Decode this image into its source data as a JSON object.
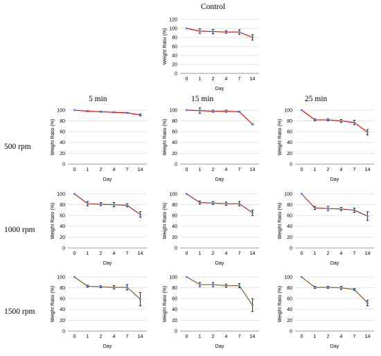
{
  "figure": {
    "column_labels": [
      "5 min",
      "15 min",
      "25 min"
    ],
    "row_labels": [
      "500 rpm",
      "1000 rpm",
      "1500 rpm"
    ],
    "control_label": "Control"
  },
  "colors": {
    "line_control": "#ff0000",
    "line_500": "#ff0000",
    "line_1000": "#a0302a",
    "line_1500": "#8b5a2b",
    "marker": "#4a86e8",
    "error": "#000000",
    "grid": "#d9d9d9",
    "axis": "#808080"
  },
  "chart_data": [
    {
      "id": "control",
      "type": "line",
      "title": "",
      "xlabel": "Day",
      "ylabel": "Weight Ratio (%)",
      "categories": [
        "0",
        "1",
        "2",
        "4",
        "7",
        "14"
      ],
      "ylim": [
        0,
        120
      ],
      "yticks": [
        0,
        20,
        40,
        60,
        80,
        100
      ],
      "values": [
        100,
        94,
        93,
        92,
        92,
        80
      ],
      "errors": [
        0,
        5,
        5,
        3,
        5,
        6
      ],
      "grid": "horizontal"
    },
    {
      "id": "500-5",
      "type": "line",
      "title": "",
      "xlabel": "Day",
      "ylabel": "Weight Ratio (%)",
      "categories": [
        "0",
        "1",
        "2",
        "4",
        "7",
        "14"
      ],
      "ylim": [
        0,
        100
      ],
      "yticks": [
        0,
        20,
        40,
        60,
        80,
        100
      ],
      "values": [
        100,
        98,
        97,
        96,
        95,
        91
      ],
      "errors": [
        0,
        1,
        1,
        1,
        1,
        2
      ],
      "grid": "horizontal"
    },
    {
      "id": "500-15",
      "type": "line",
      "title": "",
      "xlabel": "Day",
      "ylabel": "Weight Ratio (%)",
      "categories": [
        "0",
        "1",
        "2",
        "4",
        "7",
        "14"
      ],
      "ylim": [
        0,
        100
      ],
      "yticks": [
        0,
        20,
        40,
        60,
        80,
        100
      ],
      "values": [
        100,
        99,
        98,
        98,
        97,
        74
      ],
      "errors": [
        0,
        5,
        2,
        2,
        1,
        1
      ],
      "grid": "horizontal"
    },
    {
      "id": "500-25",
      "type": "line",
      "title": "",
      "xlabel": "Day",
      "ylabel": "Weight Ratio (%)",
      "categories": [
        "0",
        "1",
        "2",
        "4",
        "7",
        "14"
      ],
      "ylim": [
        0,
        100
      ],
      "yticks": [
        0,
        20,
        40,
        60,
        80,
        100
      ],
      "values": [
        100,
        82,
        82,
        80,
        77,
        59
      ],
      "errors": [
        0,
        2,
        2,
        3,
        4,
        5
      ],
      "grid": "horizontal"
    },
    {
      "id": "1000-5",
      "type": "line",
      "title": "",
      "xlabel": "Day",
      "ylabel": "Weight Ratio (%)",
      "categories": [
        "0",
        "1",
        "2",
        "4",
        "7",
        "14"
      ],
      "ylim": [
        0,
        100
      ],
      "yticks": [
        0,
        20,
        40,
        60,
        80,
        100
      ],
      "values": [
        100,
        82,
        81,
        80,
        79,
        62
      ],
      "errors": [
        0,
        4,
        3,
        4,
        3,
        5
      ],
      "grid": "horizontal"
    },
    {
      "id": "1000-15",
      "type": "line",
      "title": "",
      "xlabel": "Day",
      "ylabel": "Weight Ratio (%)",
      "categories": [
        "0",
        "1",
        "2",
        "4",
        "7",
        "14"
      ],
      "ylim": [
        0,
        100
      ],
      "yticks": [
        0,
        20,
        40,
        60,
        80,
        100
      ],
      "values": [
        100,
        84,
        83,
        82,
        82,
        65
      ],
      "errors": [
        0,
        3,
        3,
        3,
        4,
        5
      ],
      "grid": "horizontal"
    },
    {
      "id": "1000-25",
      "type": "line",
      "title": "",
      "xlabel": "Day",
      "ylabel": "Weight Ratio (%)",
      "categories": [
        "0",
        "1",
        "2",
        "4",
        "7",
        "14"
      ],
      "ylim": [
        0,
        100
      ],
      "yticks": [
        0,
        20,
        40,
        60,
        80,
        100
      ],
      "values": [
        100,
        74,
        73,
        72,
        70,
        59
      ],
      "errors": [
        0,
        3,
        4,
        3,
        4,
        8
      ],
      "grid": "horizontal"
    },
    {
      "id": "1500-5",
      "type": "line",
      "title": "",
      "xlabel": "Day",
      "ylabel": "Weight Ratio (%)",
      "categories": [
        "0",
        "1",
        "2",
        "4",
        "7",
        "14"
      ],
      "ylim": [
        0,
        100
      ],
      "yticks": [
        0,
        20,
        40,
        60,
        80,
        100
      ],
      "values": [
        100,
        83,
        82,
        81,
        81,
        59
      ],
      "errors": [
        0,
        2,
        2,
        3,
        5,
        12
      ],
      "grid": "horizontal"
    },
    {
      "id": "1500-15",
      "type": "line",
      "title": "",
      "xlabel": "Day",
      "ylabel": "Weight Ratio (%)",
      "categories": [
        "0",
        "1",
        "2",
        "4",
        "7",
        "14"
      ],
      "ylim": [
        0,
        100
      ],
      "yticks": [
        0,
        20,
        40,
        60,
        80,
        100
      ],
      "values": [
        100,
        86,
        86,
        84,
        84,
        48
      ],
      "errors": [
        0,
        4,
        4,
        3,
        4,
        12
      ],
      "grid": "horizontal"
    },
    {
      "id": "1500-25",
      "type": "line",
      "title": "",
      "xlabel": "Day",
      "ylabel": "Weight Ratio (%)",
      "categories": [
        "0",
        "1",
        "2",
        "4",
        "7",
        "14"
      ],
      "ylim": [
        0,
        100
      ],
      "yticks": [
        0,
        20,
        40,
        60,
        80,
        100
      ],
      "values": [
        100,
        81,
        81,
        80,
        77,
        52
      ],
      "errors": [
        0,
        2,
        2,
        3,
        2,
        5
      ],
      "grid": "horizontal"
    }
  ]
}
